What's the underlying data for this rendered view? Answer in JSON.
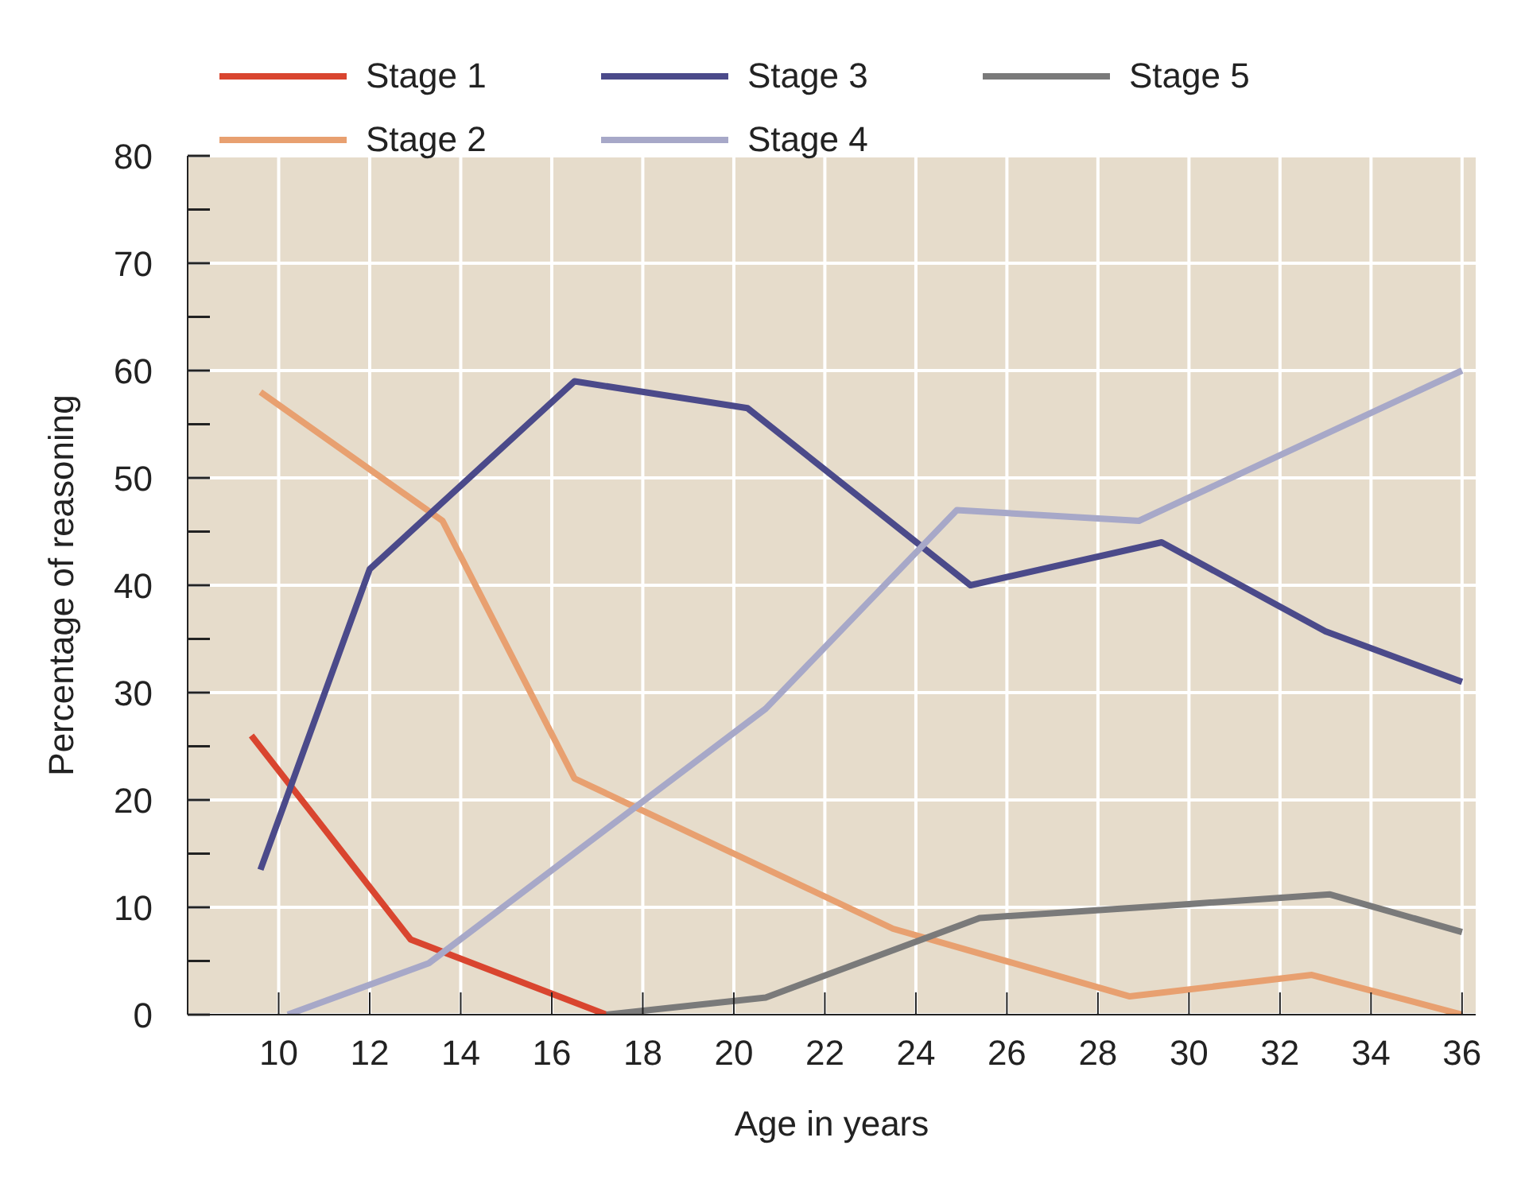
{
  "chart_data": {
    "type": "line",
    "xlabel": "Age in years",
    "ylabel": "Percentage of reasoning",
    "xlim": [
      8,
      36.3
    ],
    "xticks": [
      10,
      12,
      14,
      16,
      18,
      20,
      22,
      24,
      26,
      28,
      30,
      32,
      34,
      36
    ],
    "ylim": [
      0,
      80
    ],
    "yticks": [
      0,
      {
        "value": 5,
        "label": null
      },
      10,
      {
        "value": 15,
        "label": null
      },
      20,
      {
        "value": 25,
        "label": null
      },
      30,
      {
        "value": 35,
        "label": null
      },
      40,
      {
        "value": 45,
        "label": null
      },
      50,
      {
        "value": 55,
        "label": null
      },
      60,
      {
        "value": 65,
        "label": null
      },
      70,
      {
        "value": 75,
        "label": null
      },
      80
    ],
    "grid": true,
    "legend": "top left",
    "marker": "none",
    "line_style": "solid",
    "series": [
      {
        "name": "Stage 1",
        "color": "#d9452f",
        "x": [
          9.4,
          12.9,
          17.2
        ],
        "values": [
          26,
          7,
          0
        ]
      },
      {
        "name": "Stage 2",
        "color": "#e8a070",
        "x": [
          9.6,
          13.6,
          16.5,
          23.5,
          28.7,
          32.7,
          36
        ],
        "values": [
          58,
          46,
          22,
          8,
          1.7,
          3.7,
          0
        ]
      },
      {
        "name": "Stage 3",
        "color": "#4b4a8a",
        "x": [
          9.6,
          12,
          16.5,
          20.3,
          25.2,
          29.4,
          33,
          36
        ],
        "values": [
          13.5,
          41.5,
          59,
          56.5,
          40,
          44,
          35.7,
          31
        ]
      },
      {
        "name": "Stage 4",
        "color": "#a7a8c8",
        "x": [
          10.2,
          13.3,
          20.7,
          24.9,
          28.9,
          36
        ],
        "values": [
          0,
          4.8,
          28.5,
          47,
          46,
          60
        ]
      },
      {
        "name": "Stage 5",
        "color": "#7a7a7a",
        "x": [
          17.2,
          20.7,
          25.4,
          30,
          33.1,
          36
        ],
        "values": [
          0,
          1.6,
          9,
          10.3,
          11.2,
          7.7
        ]
      }
    ]
  }
}
